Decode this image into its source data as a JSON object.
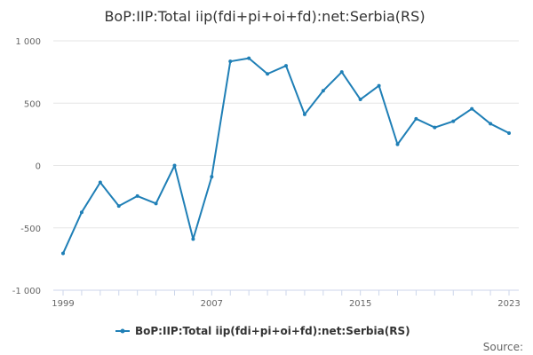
{
  "chart_data": {
    "type": "line",
    "title": "BoP:IIP:Total iip(fdi+pi+oi+fd):net:Serbia(RS)",
    "xlabel": "",
    "ylabel": "",
    "x": [
      1999,
      2000,
      2001,
      2002,
      2003,
      2004,
      2005,
      2006,
      2007,
      2008,
      2009,
      2010,
      2011,
      2012,
      2013,
      2014,
      2015,
      2016,
      2017,
      2018,
      2019,
      2020,
      2021,
      2022,
      2023
    ],
    "series": [
      {
        "name": "BoP:IIP:Total iip(fdi+pi+oi+fd):net:Serbia(RS)",
        "color": "#1f7fb6",
        "values": [
          -705,
          -375,
          -135,
          -325,
          -245,
          -305,
          0,
          -590,
          -90,
          835,
          860,
          735,
          800,
          410,
          600,
          750,
          530,
          640,
          170,
          375,
          305,
          355,
          455,
          335,
          260
        ]
      }
    ],
    "ylim": [
      -1000,
      1000
    ],
    "y_ticks": [
      -1000,
      -500,
      0,
      500,
      1000
    ],
    "y_tick_labels": [
      "-1 000",
      "-500",
      "0",
      "500",
      "1 000"
    ],
    "x_tick_labels": [
      "1999",
      "2007",
      "2015",
      "2023"
    ],
    "grid": true,
    "legend_position": "bottom"
  },
  "source_label": "Source:"
}
